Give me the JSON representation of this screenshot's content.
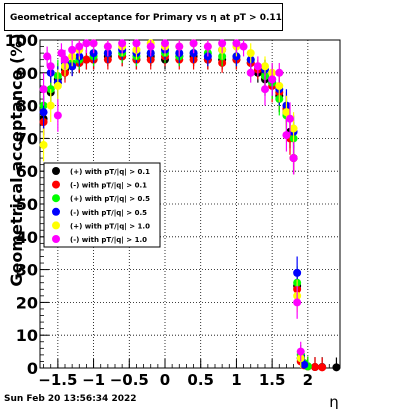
{
  "title": "Geometrical acceptance for Primary vs   η at pT > 0.11",
  "timestamp": "Sun Feb 20 13:56:34 2022",
  "chart_data": {
    "type": "scatter",
    "title": "Geometrical acceptance for Primary vs   η at pT > 0.11",
    "xlabel": "η",
    "ylabel": "Geometrical acceptance (%)",
    "xlim": [
      -1.75,
      2.45
    ],
    "ylim": [
      0,
      100
    ],
    "x_ticks": [
      -1.5,
      -1,
      -0.5,
      0,
      0.5,
      1,
      1.5,
      2
    ],
    "x_tick_labels": [
      "−1.5",
      "−1",
      "−0.5",
      "0",
      "0.5",
      "1",
      "1.5",
      "2"
    ],
    "y_ticks": [
      0,
      10,
      20,
      30,
      40,
      50,
      60,
      70,
      80,
      90,
      100
    ],
    "grid": true,
    "legend_position": "middle-left",
    "series": [
      {
        "name": "(+) with pT/|q| > 0.1",
        "color": "#000000",
        "x": [
          -1.7,
          -1.6,
          -1.5,
          -1.4,
          -1.3,
          -1.2,
          -1.1,
          -1.0,
          -0.8,
          -0.6,
          -0.4,
          -0.2,
          0.0,
          0.2,
          0.4,
          0.6,
          0.8,
          1.0,
          1.2,
          1.3,
          1.4,
          1.5,
          1.6,
          1.7,
          1.75,
          1.8,
          1.85,
          1.9,
          1.95,
          2.0,
          2.1,
          2.2,
          2.4
        ],
        "y": [
          76,
          84,
          88,
          91,
          92,
          93,
          94,
          94,
          95,
          95,
          94,
          95,
          94,
          95,
          95,
          94,
          94,
          94,
          93,
          90,
          88,
          87,
          83,
          78,
          72,
          64,
          25,
          3,
          1,
          0.5,
          0.3,
          0.3,
          0.2
        ]
      },
      {
        "name": "(-) with pT/|q| > 0.1",
        "color": "#ff0000",
        "x": [
          -1.7,
          -1.6,
          -1.5,
          -1.4,
          -1.3,
          -1.2,
          -1.1,
          -1.0,
          -0.8,
          -0.6,
          -0.4,
          -0.2,
          0.0,
          0.2,
          0.4,
          0.6,
          0.8,
          1.0,
          1.2,
          1.3,
          1.4,
          1.5,
          1.6,
          1.7,
          1.75,
          1.8,
          1.85,
          1.9,
          1.95,
          2.0,
          2.1,
          2.2
        ],
        "y": [
          75,
          85,
          87,
          90,
          92,
          93,
          94,
          94,
          94,
          95,
          94,
          94,
          95,
          94,
          94,
          94,
          93,
          94,
          93,
          91,
          89,
          86,
          84,
          79,
          70,
          64,
          24,
          2,
          0.8,
          0.5,
          0.3,
          0.2
        ]
      },
      {
        "name": "(+) with pT/|q| > 0.5",
        "color": "#00ff00",
        "x": [
          -1.7,
          -1.6,
          -1.5,
          -1.4,
          -1.3,
          -1.2,
          -1.0,
          -0.8,
          -0.6,
          -0.4,
          -0.2,
          0.0,
          0.2,
          0.4,
          0.6,
          0.8,
          1.0,
          1.2,
          1.4,
          1.5,
          1.6,
          1.7,
          1.8,
          1.85,
          1.9,
          1.95,
          2.0
        ],
        "y": [
          80,
          85,
          89,
          92,
          93,
          94,
          95,
          96,
          96,
          95,
          96,
          96,
          95,
          96,
          96,
          95,
          95,
          94,
          89,
          87,
          82,
          77,
          70,
          26,
          4,
          1.5,
          0.5
        ]
      },
      {
        "name": "(-) with pT/|q| > 0.5",
        "color": "#0000ff",
        "x": [
          -1.7,
          -1.6,
          -1.5,
          -1.4,
          -1.3,
          -1.2,
          -1.0,
          -0.8,
          -0.6,
          -0.4,
          -0.2,
          0.0,
          0.2,
          0.4,
          0.6,
          0.8,
          1.0,
          1.2,
          1.4,
          1.5,
          1.6,
          1.7,
          1.8,
          1.85,
          1.9,
          1.95
        ],
        "y": [
          78,
          90,
          87,
          93,
          92,
          95,
          96,
          96,
          97,
          96,
          96,
          97,
          96,
          96,
          95,
          97,
          95,
          94,
          91,
          88,
          85,
          80,
          72,
          29,
          3,
          1
        ]
      },
      {
        "name": "(+) with pT/|q| > 1.0",
        "color": "#ffff00",
        "x": [
          -1.7,
          -1.6,
          -1.5,
          -1.4,
          -1.3,
          -1.2,
          -1.0,
          -0.8,
          -0.6,
          -0.4,
          -0.2,
          0.0,
          0.2,
          0.4,
          0.6,
          0.8,
          1.0,
          1.2,
          1.4,
          1.5,
          1.6,
          1.7,
          1.8,
          1.85,
          1.9
        ],
        "y": [
          68,
          80,
          86,
          92,
          95,
          97,
          99,
          98,
          98,
          97,
          99,
          98,
          98,
          99,
          98,
          97,
          98,
          96,
          92,
          90,
          86,
          78,
          73,
          22,
          3
        ]
      },
      {
        "name": "(-) with pT/|q| > 1.0",
        "color": "#ff00ff",
        "x": [
          -1.7,
          -1.65,
          -1.6,
          -1.5,
          -1.45,
          -1.4,
          -1.3,
          -1.2,
          -1.1,
          -1.0,
          -0.8,
          -0.6,
          -0.4,
          -0.2,
          0.0,
          0.2,
          0.4,
          0.6,
          0.8,
          1.0,
          1.1,
          1.2,
          1.3,
          1.4,
          1.5,
          1.6,
          1.7,
          1.75,
          1.8,
          1.85,
          1.9
        ],
        "y": [
          85,
          95,
          92,
          77,
          96,
          94,
          97,
          98,
          99,
          99,
          98,
          99,
          99,
          98,
          99,
          98,
          99,
          98,
          99,
          99,
          98,
          90,
          92,
          85,
          88,
          90,
          71,
          76,
          64,
          20,
          5
        ]
      }
    ]
  }
}
